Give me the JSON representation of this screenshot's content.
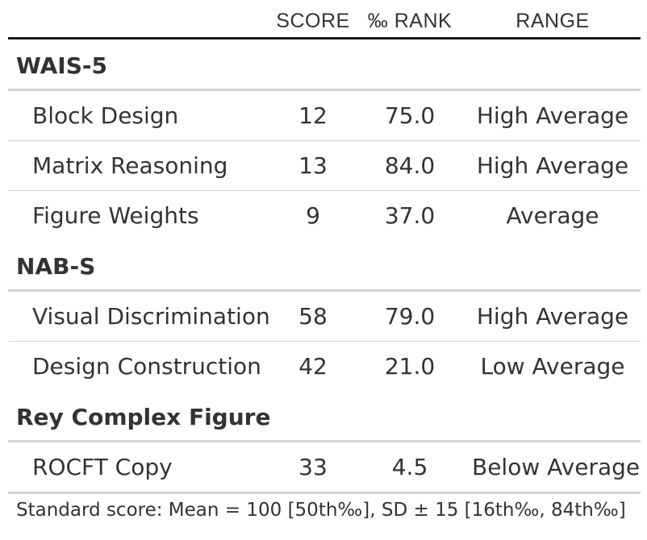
{
  "columns": {
    "score": "SCORE",
    "rank": "‰ RANK",
    "range": "RANGE"
  },
  "groups": [
    {
      "label": "WAIS-5",
      "rows": [
        {
          "test": "Block Design",
          "score": "12",
          "rank": "75.0",
          "range": "High Average"
        },
        {
          "test": "Matrix Reasoning",
          "score": "13",
          "rank": "84.0",
          "range": "High Average"
        },
        {
          "test": "Figure Weights",
          "score": "9",
          "rank": "37.0",
          "range": "Average"
        }
      ]
    },
    {
      "label": "NAB-S",
      "rows": [
        {
          "test": "Visual Discrimination",
          "score": "58",
          "rank": "79.0",
          "range": "High Average"
        },
        {
          "test": "Design Construction",
          "score": "42",
          "rank": "21.0",
          "range": "Low Average"
        }
      ]
    },
    {
      "label": "Rey Complex Figure",
      "rows": [
        {
          "test": "ROCFT Copy",
          "score": "33",
          "rank": "4.5",
          "range": "Below Average"
        }
      ]
    }
  ],
  "footnote": "Standard score: Mean = 100 [50th‰], SD ± 15 [16th‰, 84th‰]"
}
